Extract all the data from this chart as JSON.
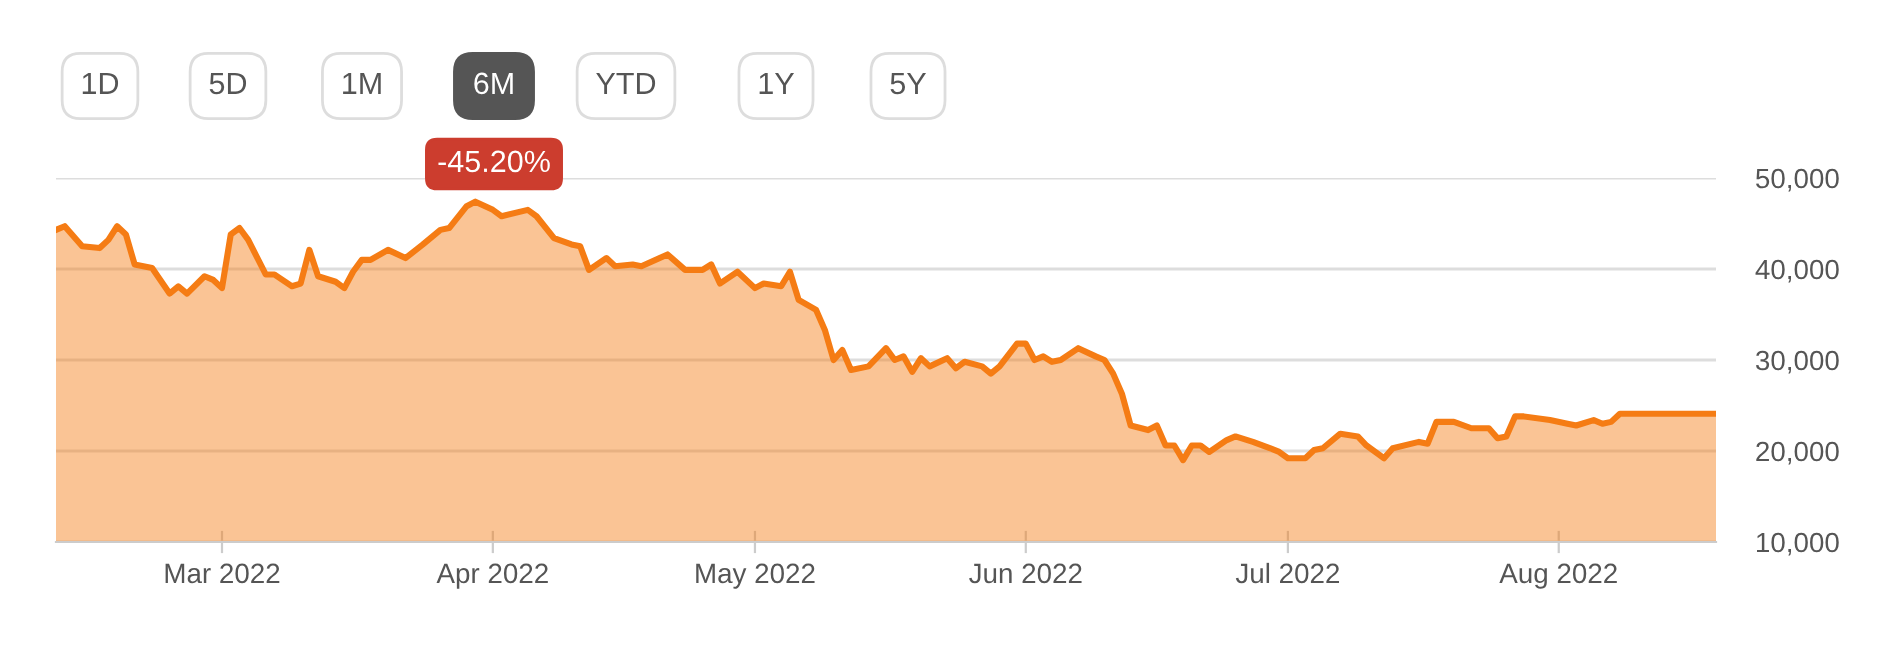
{
  "chart_data": {
    "type": "area",
    "annotations": [
      "1D",
      "5D",
      "1M",
      "6M",
      "YTD",
      "1Y",
      "5Y",
      "-45.20%"
    ],
    "x": [
      "2022-02-10",
      "2022-02-11",
      "2022-02-13",
      "2022-02-15",
      "2022-02-16",
      "2022-02-17",
      "2022-02-18",
      "2022-02-19",
      "2022-02-21",
      "2022-02-23",
      "2022-02-24",
      "2022-02-25",
      "2022-02-27",
      "2022-02-28",
      "2022-03-01",
      "2022-03-02",
      "2022-03-03",
      "2022-03-04",
      "2022-03-06",
      "2022-03-07",
      "2022-03-09",
      "2022-03-10",
      "2022-03-11",
      "2022-03-12",
      "2022-03-14",
      "2022-03-15",
      "2022-03-16",
      "2022-03-17",
      "2022-03-18",
      "2022-03-20",
      "2022-03-22",
      "2022-03-24",
      "2022-03-26",
      "2022-03-27",
      "2022-03-29",
      "2022-03-30",
      "2022-04-01",
      "2022-04-02",
      "2022-04-05",
      "2022-04-06",
      "2022-04-08",
      "2022-04-10",
      "2022-04-11",
      "2022-04-12",
      "2022-04-14",
      "2022-04-15",
      "2022-04-17",
      "2022-04-18",
      "2022-04-21",
      "2022-04-23",
      "2022-04-25",
      "2022-04-26",
      "2022-04-27",
      "2022-04-29",
      "2022-05-01",
      "2022-05-02",
      "2022-05-04",
      "2022-05-05",
      "2022-05-06",
      "2022-05-08",
      "2022-05-09",
      "2022-05-10",
      "2022-05-11",
      "2022-05-12",
      "2022-05-14",
      "2022-05-16",
      "2022-05-17",
      "2022-05-18",
      "2022-05-19",
      "2022-05-20",
      "2022-05-21",
      "2022-05-23",
      "2022-05-24",
      "2022-05-25",
      "2022-05-27",
      "2022-05-28",
      "2022-05-29",
      "2022-05-31",
      "2022-06-01",
      "2022-06-02",
      "2022-06-03",
      "2022-06-04",
      "2022-06-05",
      "2022-06-07",
      "2022-06-09",
      "2022-06-10",
      "2022-06-11",
      "2022-06-12",
      "2022-06-13",
      "2022-06-15",
      "2022-06-16",
      "2022-06-17",
      "2022-06-18",
      "2022-06-19",
      "2022-06-20",
      "2022-06-21",
      "2022-06-22",
      "2022-06-24",
      "2022-06-25",
      "2022-06-27",
      "2022-06-29",
      "2022-06-30",
      "2022-07-01",
      "2022-07-03",
      "2022-07-04",
      "2022-07-05",
      "2022-07-07",
      "2022-07-09",
      "2022-07-10",
      "2022-07-12",
      "2022-07-13",
      "2022-07-16",
      "2022-07-17",
      "2022-07-18",
      "2022-07-20",
      "2022-07-22",
      "2022-07-24",
      "2022-07-25",
      "2022-07-26",
      "2022-07-27",
      "2022-07-28",
      "2022-07-31",
      "2022-08-02",
      "2022-08-03",
      "2022-08-05",
      "2022-08-06",
      "2022-08-07",
      "2022-08-08",
      "2022-08-10",
      "2022-08-19"
    ],
    "series": [
      {
        "color": "#f57c14",
        "values": [
          44300,
          44700,
          42500,
          42300,
          43200,
          44700,
          43800,
          40500,
          40100,
          37300,
          38100,
          37300,
          39200,
          38800,
          37900,
          43800,
          44500,
          43200,
          39400,
          39400,
          38100,
          38400,
          42100,
          39200,
          38600,
          37900,
          39700,
          41000,
          41000,
          42100,
          41200,
          42700,
          44300,
          44500,
          46900,
          47400,
          46500,
          45800,
          46500,
          45800,
          43400,
          42700,
          42500,
          39900,
          41200,
          40300,
          40500,
          40300,
          41600,
          39900,
          39900,
          40500,
          38400,
          39700,
          37900,
          38400,
          38100,
          39700,
          36600,
          35500,
          33300,
          30000,
          31100,
          28900,
          29300,
          31300,
          30000,
          30400,
          28700,
          30200,
          29300,
          30200,
          29100,
          29800,
          29300,
          28500,
          29300,
          31800,
          31800,
          30000,
          30400,
          29800,
          30000,
          31300,
          30400,
          30000,
          28500,
          26300,
          22800,
          22300,
          22800,
          20600,
          20600,
          19000,
          20600,
          20600,
          19900,
          21200,
          21600,
          21000,
          20300,
          19900,
          19200,
          19200,
          20100,
          20300,
          21900,
          21600,
          20600,
          19200,
          20300,
          21000,
          20800,
          23200,
          23200,
          22500,
          22500,
          21400,
          21600,
          23800,
          23800,
          23400,
          23000,
          22800,
          23400,
          23000,
          23200,
          24100,
          24100,
          24100
        ]
      }
    ],
    "xlim": [
      "2022-02-10",
      "2022-08-19"
    ],
    "xticks": [
      {
        "value": "2022-03-01",
        "label": "Mar 2022"
      },
      {
        "value": "2022-04-01",
        "label": "Apr 2022"
      },
      {
        "value": "2022-05-01",
        "label": "May 2022"
      },
      {
        "value": "2022-06-01",
        "label": "Jun 2022"
      },
      {
        "value": "2022-07-01",
        "label": "Jul 2022"
      },
      {
        "value": "2022-08-01",
        "label": "Aug 2022"
      }
    ],
    "ylim": [
      10000,
      50000
    ],
    "yticks": [
      {
        "value": 10000,
        "label": "10,000"
      },
      {
        "value": 20000,
        "label": "20,000"
      },
      {
        "value": 30000,
        "label": "30,000"
      },
      {
        "value": 40000,
        "label": "40,000"
      },
      {
        "value": 50000,
        "label": "50,000"
      }
    ],
    "grid": "y"
  }
}
